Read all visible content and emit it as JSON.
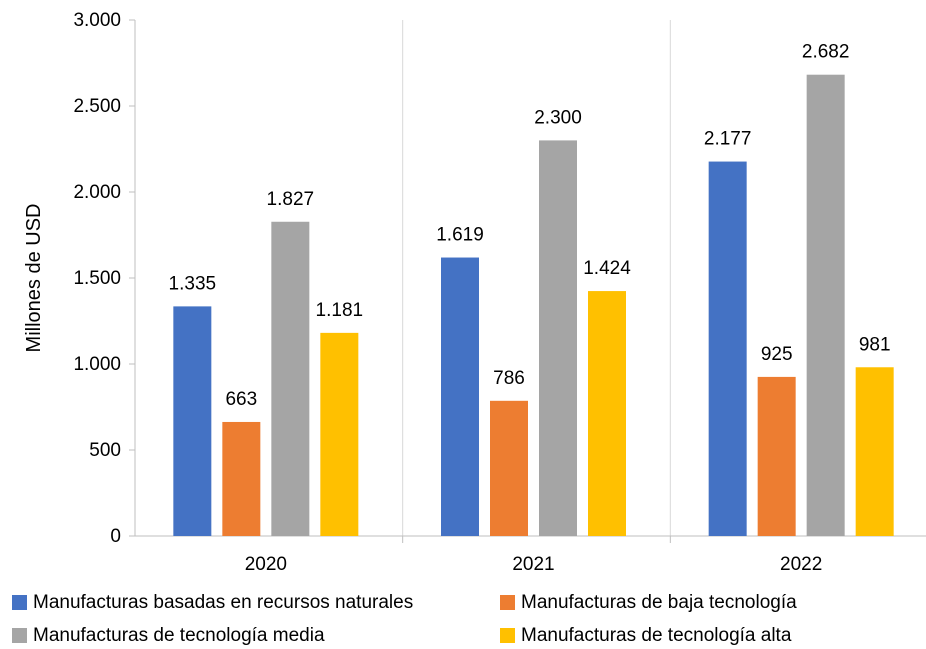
{
  "chart_data": {
    "type": "bar",
    "title": "",
    "xlabel": "",
    "ylabel": "Millones de USD",
    "ylim": [
      0,
      3000
    ],
    "yticks": [
      0,
      500,
      1000,
      1500,
      2000,
      2500,
      3000
    ],
    "ytick_labels": [
      "0",
      "500",
      "1.000",
      "1.500",
      "2.000",
      "2.500",
      "3.000"
    ],
    "categories": [
      "2020",
      "2021",
      "2022"
    ],
    "series": [
      {
        "name": "Manufacturas basadas en recursos naturales",
        "color": "#4472C4",
        "values": [
          1335,
          1619,
          2177
        ],
        "labels": [
          "1.335",
          "1.619",
          "2.177"
        ]
      },
      {
        "name": "Manufacturas de baja tecnología",
        "color": "#ED7D31",
        "values": [
          663,
          786,
          925
        ],
        "labels": [
          "663",
          "786",
          "925"
        ]
      },
      {
        "name": "Manufacturas de tecnología media",
        "color": "#A5A5A5",
        "values": [
          1827,
          2300,
          2682
        ],
        "labels": [
          "1.827",
          "2.300",
          "2.682"
        ]
      },
      {
        "name": "Manufacturas de tecnología alta",
        "color": "#FFC000",
        "values": [
          1181,
          1424,
          981
        ],
        "labels": [
          "1.181",
          "1.424",
          "981"
        ]
      }
    ],
    "grid": "vertical separators between categories",
    "legend_position": "bottom"
  }
}
